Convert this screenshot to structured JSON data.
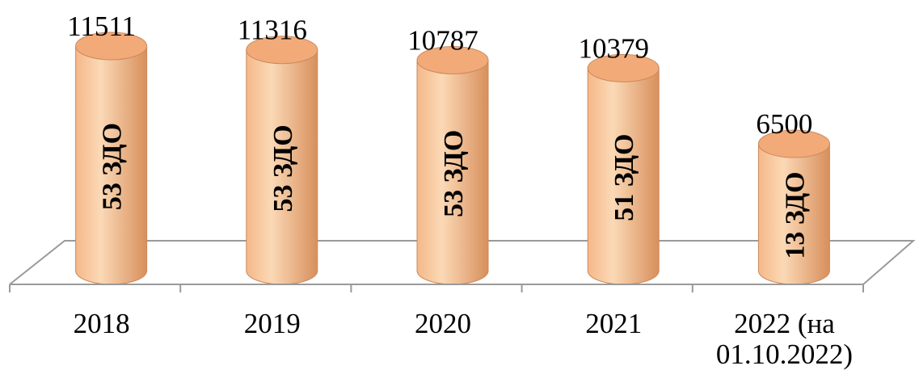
{
  "chart_data": {
    "type": "bar",
    "style": "3d-cylinder",
    "title": "",
    "xlabel": "",
    "ylabel": "",
    "categories": [
      [
        "2018"
      ],
      [
        "2019"
      ],
      [
        "2020"
      ],
      [
        "2021"
      ],
      [
        "2022  (на",
        "01.10.2022)"
      ]
    ],
    "values": [
      11511,
      11316,
      10787,
      10379,
      6500
    ],
    "bar_labels": [
      "53 ЗДО",
      "53 ЗДО",
      "53 ЗДО",
      "51 ЗДО",
      "13 ЗДО"
    ],
    "ylim": [
      0,
      11511
    ],
    "grid": false,
    "legend": "none",
    "colors": {
      "bar_fill_light": "#fbd9b6",
      "bar_fill_mid": "#f5b889",
      "bar_fill_dark": "#d88f5c",
      "bar_top": "#f2aa78",
      "bar_stroke": "#c98a5c",
      "floor_stroke": "#9a9a9a"
    }
  }
}
